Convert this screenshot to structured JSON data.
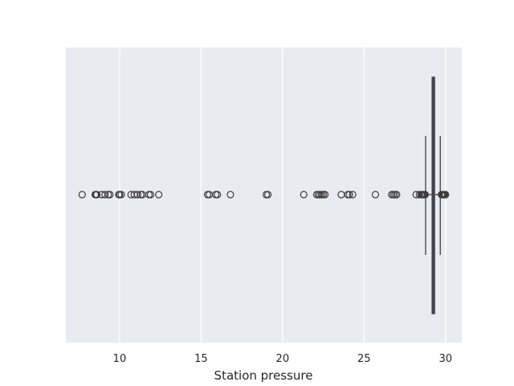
{
  "chart_data": {
    "type": "box",
    "orientation": "horizontal",
    "title": "",
    "xlabel": "Station pressure",
    "ylabel": "",
    "xlim": [
      6.7,
      31.0
    ],
    "xticks": [
      10,
      15,
      20,
      25,
      30
    ],
    "xtick_labels": [
      "10",
      "15",
      "20",
      "25",
      "30"
    ],
    "grid": true,
    "background": "#eaeaf2",
    "box": {
      "whisker_low": 28.78,
      "q1": 29.18,
      "median": 29.25,
      "q3": 29.33,
      "whisker_high": 29.68
    },
    "outliers": [
      7.7,
      8.5,
      8.55,
      8.6,
      8.9,
      9.1,
      9.3,
      9.4,
      9.95,
      10.0,
      10.1,
      10.7,
      10.9,
      11.1,
      11.3,
      11.4,
      11.8,
      11.9,
      12.4,
      15.4,
      15.5,
      15.9,
      16.0,
      16.8,
      19.0,
      19.1,
      21.3,
      22.1,
      22.2,
      22.3,
      22.4,
      22.5,
      22.6,
      23.6,
      24.0,
      24.1,
      24.3,
      25.7,
      26.7,
      26.8,
      26.9,
      27.0,
      28.2,
      28.4,
      28.5,
      28.55,
      28.6,
      28.65,
      28.7,
      28.75,
      29.75,
      29.8,
      29.85,
      29.9,
      29.95,
      30.0
    ],
    "colors": {
      "box_fill": "#4c72b0",
      "line": "#3d3d3d",
      "grid": "#ffffff"
    }
  }
}
